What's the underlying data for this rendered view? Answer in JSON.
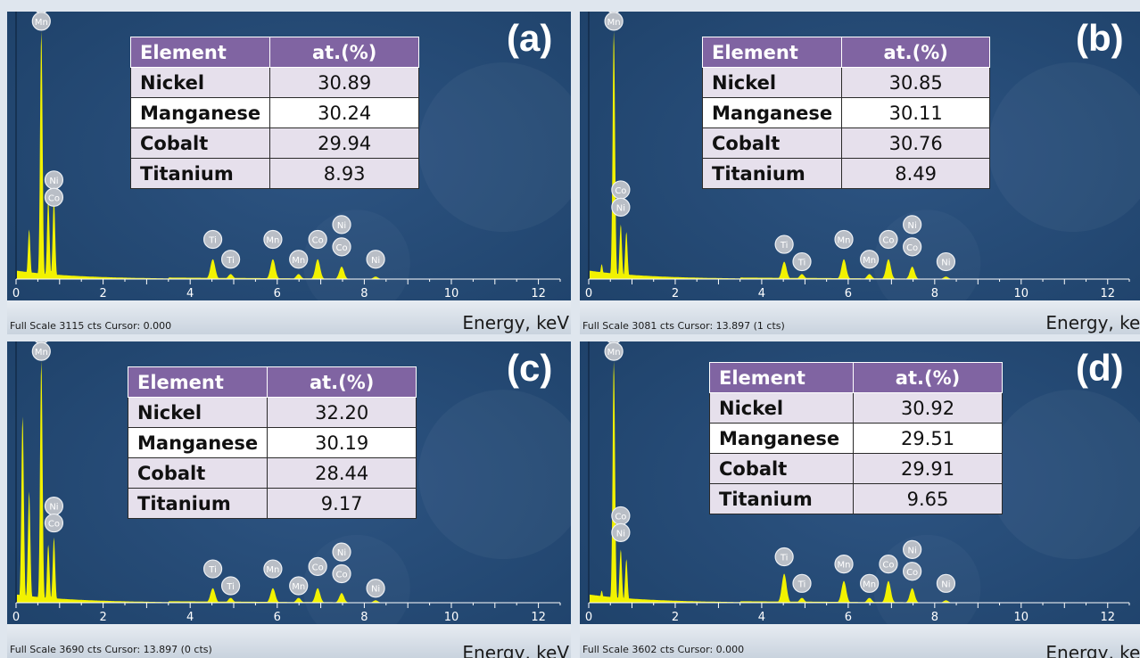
{
  "panels": [
    {
      "id": "(a)",
      "table": {
        "headers": [
          "Element",
          "at.(%)"
        ],
        "rows": [
          [
            "Nickel",
            "30.89"
          ],
          [
            "Manganese",
            "30.24"
          ],
          [
            "Cobalt",
            "29.94"
          ],
          [
            "Titanium",
            "8.93"
          ]
        ]
      },
      "footer": {
        "scale": "Full Scale 3115 cts Cursor: 0.000",
        "xlabel": "Energy, keV"
      }
    },
    {
      "id": "(b)",
      "table": {
        "headers": [
          "Element",
          "at.(%)"
        ],
        "rows": [
          [
            "Nickel",
            "30.85"
          ],
          [
            "Manganese",
            "30.11"
          ],
          [
            "Cobalt",
            "30.76"
          ],
          [
            "Titanium",
            "8.49"
          ]
        ]
      },
      "footer": {
        "scale": "Full Scale 3081 cts Cursor: 13.897  (1 cts)",
        "xlabel": "Energy, keV"
      }
    },
    {
      "id": "(c)",
      "table": {
        "headers": [
          "Element",
          "at.(%)"
        ],
        "rows": [
          [
            "Nickel",
            "32.20"
          ],
          [
            "Manganese",
            "30.19"
          ],
          [
            "Cobalt",
            "28.44"
          ],
          [
            "Titanium",
            "9.17"
          ]
        ]
      },
      "footer": {
        "scale": "Full Scale 3690 cts Cursor: 13.897  (0 cts)",
        "xlabel": "Energy, keV"
      }
    },
    {
      "id": "(d)",
      "table": {
        "headers": [
          "Element",
          "at.(%)"
        ],
        "rows": [
          [
            "Nickel",
            "30.92"
          ],
          [
            "Manganese",
            "29.51"
          ],
          [
            "Cobalt",
            "29.91"
          ],
          [
            "Titanium",
            "9.65"
          ]
        ]
      },
      "footer": {
        "scale": "Full Scale 3602 cts Cursor: 0.000",
        "xlabel": "Energy, keV"
      }
    }
  ],
  "colors": {
    "background": "#1e4169",
    "spectrum": "#f2f200",
    "header": "#8064a2",
    "row_shade": "#e6e0ec",
    "marker": "#b9bec6"
  },
  "chart_data": [
    {
      "type": "area",
      "xlabel": "Energy, keV",
      "xlim": [
        0,
        12.5
      ],
      "x_ticks": [
        0,
        2,
        4,
        6,
        8,
        10,
        12
      ],
      "full_scale_cts": 3115,
      "peaks": [
        {
          "x": 0.3,
          "y": 0.2
        },
        {
          "x": 0.58,
          "y": 1.0
        },
        {
          "x": 0.74,
          "y": 0.32
        },
        {
          "x": 0.87,
          "y": 0.33
        },
        {
          "x": 4.52,
          "y": 0.08
        },
        {
          "x": 4.93,
          "y": 0.02
        },
        {
          "x": 5.9,
          "y": 0.08
        },
        {
          "x": 6.49,
          "y": 0.02
        },
        {
          "x": 6.93,
          "y": 0.08
        },
        {
          "x": 7.48,
          "y": 0.05
        },
        {
          "x": 8.26,
          "y": 0.01
        }
      ],
      "markers": [
        {
          "label": "Ti",
          "x": 0.58,
          "y": 1.11
        },
        {
          "label": "Mn",
          "x": 0.58,
          "y": 1.04
        },
        {
          "label": "Ni",
          "x": 0.87,
          "y": 0.4
        },
        {
          "label": "Co",
          "x": 0.87,
          "y": 0.33
        },
        {
          "label": "Ti",
          "x": 4.52,
          "y": 0.16
        },
        {
          "label": "Ti",
          "x": 4.93,
          "y": 0.08
        },
        {
          "label": "Mn",
          "x": 5.9,
          "y": 0.16
        },
        {
          "label": "Mn",
          "x": 6.49,
          "y": 0.08
        },
        {
          "label": "Co",
          "x": 6.93,
          "y": 0.16
        },
        {
          "label": "Ni",
          "x": 7.48,
          "y": 0.22
        },
        {
          "label": "Co",
          "x": 7.48,
          "y": 0.13
        },
        {
          "label": "Ni",
          "x": 8.26,
          "y": 0.08
        }
      ]
    },
    {
      "type": "area",
      "xlabel": "Energy, keV",
      "xlim": [
        0,
        12.5
      ],
      "x_ticks": [
        0,
        2,
        4,
        6,
        8,
        10,
        12
      ],
      "full_scale_cts": 3081,
      "peaks": [
        {
          "x": 0.3,
          "y": 0.06
        },
        {
          "x": 0.58,
          "y": 1.0
        },
        {
          "x": 0.74,
          "y": 0.22
        },
        {
          "x": 0.87,
          "y": 0.19
        },
        {
          "x": 4.52,
          "y": 0.07
        },
        {
          "x": 4.93,
          "y": 0.02
        },
        {
          "x": 5.9,
          "y": 0.08
        },
        {
          "x": 6.49,
          "y": 0.02
        },
        {
          "x": 6.93,
          "y": 0.08
        },
        {
          "x": 7.48,
          "y": 0.05
        },
        {
          "x": 8.26,
          "y": 0.01
        }
      ],
      "markers": [
        {
          "label": "Ti",
          "x": 0.58,
          "y": 1.11
        },
        {
          "label": "Mn",
          "x": 0.58,
          "y": 1.04
        },
        {
          "label": "Co",
          "x": 0.74,
          "y": 0.36
        },
        {
          "label": "Ni",
          "x": 0.74,
          "y": 0.29
        },
        {
          "label": "Ti",
          "x": 4.52,
          "y": 0.14
        },
        {
          "label": "Ti",
          "x": 4.93,
          "y": 0.07
        },
        {
          "label": "Mn",
          "x": 5.9,
          "y": 0.16
        },
        {
          "label": "Mn",
          "x": 6.49,
          "y": 0.08
        },
        {
          "label": "Co",
          "x": 6.93,
          "y": 0.16
        },
        {
          "label": "Ni",
          "x": 7.48,
          "y": 0.22
        },
        {
          "label": "Co",
          "x": 7.48,
          "y": 0.13
        },
        {
          "label": "Ni",
          "x": 8.26,
          "y": 0.07
        }
      ]
    },
    {
      "type": "area",
      "xlabel": "Energy, keV",
      "xlim": [
        0,
        12.5
      ],
      "x_ticks": [
        0,
        2,
        4,
        6,
        8,
        10,
        12
      ],
      "full_scale_cts": 3690,
      "peaks": [
        {
          "x": 0.15,
          "y": 0.77
        },
        {
          "x": 0.3,
          "y": 0.46
        },
        {
          "x": 0.58,
          "y": 1.0
        },
        {
          "x": 0.74,
          "y": 0.24
        },
        {
          "x": 0.87,
          "y": 0.27
        },
        {
          "x": 4.52,
          "y": 0.06
        },
        {
          "x": 4.93,
          "y": 0.02
        },
        {
          "x": 5.9,
          "y": 0.06
        },
        {
          "x": 6.49,
          "y": 0.02
        },
        {
          "x": 6.93,
          "y": 0.06
        },
        {
          "x": 7.48,
          "y": 0.04
        },
        {
          "x": 8.26,
          "y": 0.01
        }
      ],
      "markers": [
        {
          "label": "Ti",
          "x": 0.58,
          "y": 1.11
        },
        {
          "label": "Mn",
          "x": 0.58,
          "y": 1.04
        },
        {
          "label": "Ni",
          "x": 0.87,
          "y": 0.4
        },
        {
          "label": "Co",
          "x": 0.87,
          "y": 0.33
        },
        {
          "label": "Ti",
          "x": 4.52,
          "y": 0.14
        },
        {
          "label": "Ti",
          "x": 4.93,
          "y": 0.07
        },
        {
          "label": "Mn",
          "x": 5.9,
          "y": 0.14
        },
        {
          "label": "Mn",
          "x": 6.49,
          "y": 0.07
        },
        {
          "label": "Co",
          "x": 6.93,
          "y": 0.15
        },
        {
          "label": "Ni",
          "x": 7.48,
          "y": 0.21
        },
        {
          "label": "Co",
          "x": 7.48,
          "y": 0.12
        },
        {
          "label": "Ni",
          "x": 8.26,
          "y": 0.06
        }
      ]
    },
    {
      "type": "area",
      "xlabel": "Energy, keV",
      "xlim": [
        0,
        12.5
      ],
      "x_ticks": [
        0,
        2,
        4,
        6,
        8,
        10,
        12
      ],
      "full_scale_cts": 3602,
      "peaks": [
        {
          "x": 0.3,
          "y": 0.05
        },
        {
          "x": 0.58,
          "y": 1.0
        },
        {
          "x": 0.74,
          "y": 0.22
        },
        {
          "x": 0.87,
          "y": 0.18
        },
        {
          "x": 4.52,
          "y": 0.12
        },
        {
          "x": 4.93,
          "y": 0.02
        },
        {
          "x": 5.9,
          "y": 0.09
        },
        {
          "x": 6.49,
          "y": 0.02
        },
        {
          "x": 6.93,
          "y": 0.09
        },
        {
          "x": 7.48,
          "y": 0.06
        },
        {
          "x": 8.26,
          "y": 0.01
        }
      ],
      "markers": [
        {
          "label": "Ti",
          "x": 0.58,
          "y": 1.11
        },
        {
          "label": "Mn",
          "x": 0.58,
          "y": 1.04
        },
        {
          "label": "Co",
          "x": 0.74,
          "y": 0.36
        },
        {
          "label": "Ni",
          "x": 0.74,
          "y": 0.29
        },
        {
          "label": "Ti",
          "x": 4.52,
          "y": 0.19
        },
        {
          "label": "Ti",
          "x": 4.93,
          "y": 0.08
        },
        {
          "label": "Mn",
          "x": 5.9,
          "y": 0.16
        },
        {
          "label": "Mn",
          "x": 6.49,
          "y": 0.08
        },
        {
          "label": "Co",
          "x": 6.93,
          "y": 0.16
        },
        {
          "label": "Ni",
          "x": 7.48,
          "y": 0.22
        },
        {
          "label": "Co",
          "x": 7.48,
          "y": 0.13
        },
        {
          "label": "Ni",
          "x": 8.26,
          "y": 0.08
        }
      ]
    }
  ]
}
